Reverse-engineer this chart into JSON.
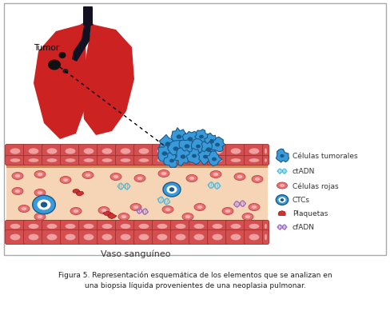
{
  "title_line1": "Figura 5. Representación esquemática de los elementos que se analizan en",
  "title_line2": "una biopsia líquida provenientes de una neoplasia pulmonar.",
  "vaso_label": "Vaso sanguíneo",
  "tumor_label": "Tumor",
  "legend_items": [
    "Células tumorales",
    "ctADN",
    "Células rojas",
    "CTCs",
    "Plaquetas",
    "cfADN"
  ],
  "bg_color": "#ffffff",
  "vessel_wall_color": "#d45050",
  "vessel_wall_inner": "#f0a0a0",
  "vessel_lumen_color": "#f5d5b5",
  "red_cell_fill": "#e87070",
  "red_cell_inner": "#f5b0b0",
  "tumor_cell_blue": "#3a9ad9",
  "tumor_cell_dark": "#1a5a8a",
  "ctc_blue": "#3a9ad9",
  "platelet_red": "#cc3333",
  "dna_teal": "#5abcd8",
  "dna_purple": "#a070c0",
  "lung_red": "#cc2222",
  "tumor_dark": "#111111",
  "border_color": "#aaaaaa",
  "text_color": "#333333",
  "orange_strip": "#d4874a"
}
